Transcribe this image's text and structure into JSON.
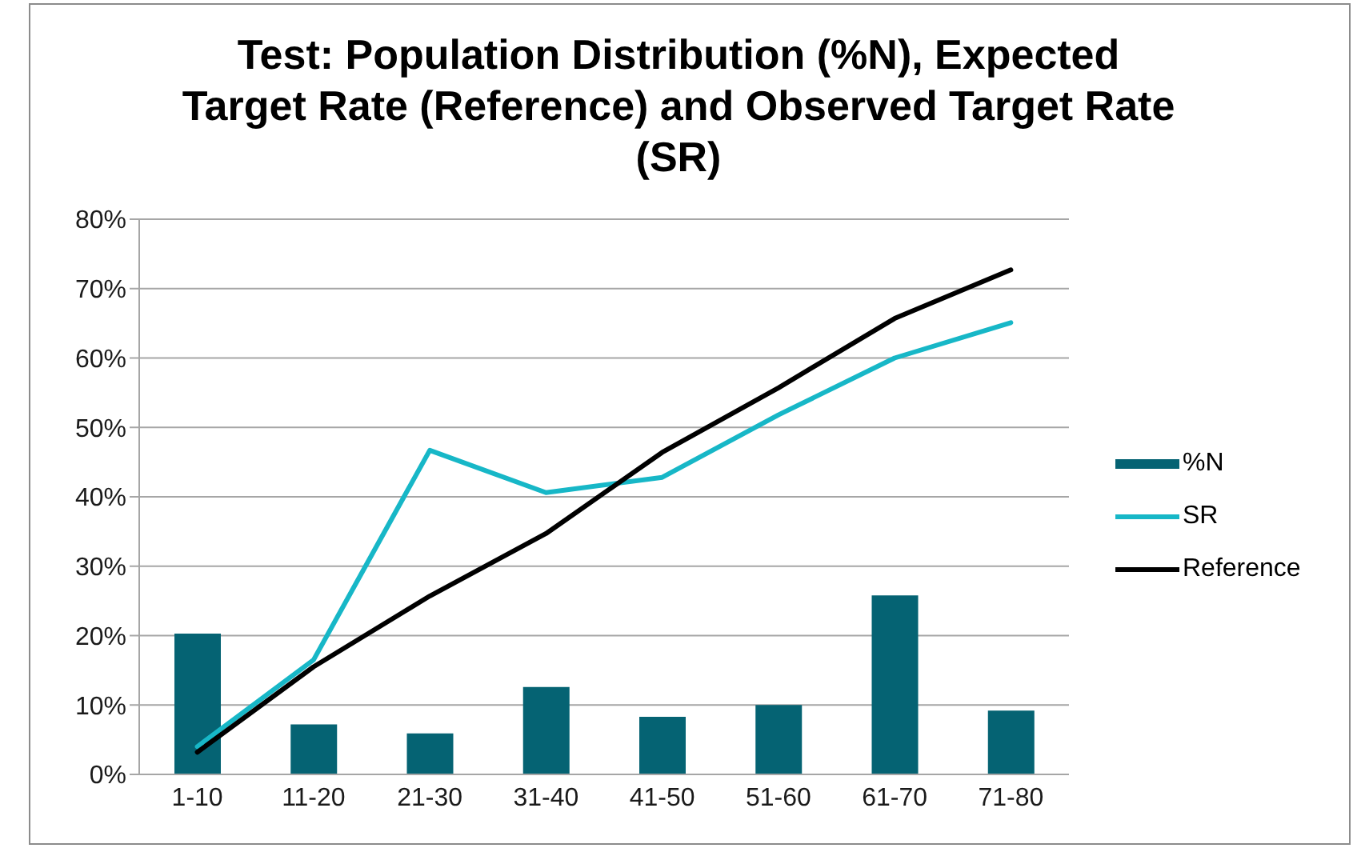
{
  "chart_data": {
    "type": "bar",
    "title": "Test: Population Distribution (%N), Expected Target Rate (Reference) and Observed Target Rate (SR)",
    "categories": [
      "1-10",
      "11-20",
      "21-30",
      "31-40",
      "41-50",
      "51-60",
      "61-70",
      "71-80"
    ],
    "series": [
      {
        "name": "%N",
        "color": "#056373",
        "values": [
          20.3,
          7.2,
          5.9,
          12.6,
          8.3,
          10.0,
          25.8,
          9.2
        ]
      },
      {
        "name": "SR",
        "type": "line",
        "color": "#17b7c7",
        "values": [
          4.0,
          16.5,
          46.7,
          40.6,
          42.8,
          51.8,
          60.0,
          65.1
        ]
      },
      {
        "name": "Reference",
        "type": "line",
        "color": "#000000",
        "values": [
          3.2,
          15.5,
          25.7,
          34.7,
          46.4,
          55.7,
          65.7,
          72.7
        ]
      }
    ],
    "ylim": [
      0,
      80
    ],
    "yticks": [
      {
        "value": 0,
        "label": "0%"
      },
      {
        "value": 10,
        "label": "10%"
      },
      {
        "value": 20,
        "label": "20%"
      },
      {
        "value": 30,
        "label": "30%"
      },
      {
        "value": 40,
        "label": "40%"
      },
      {
        "value": 50,
        "label": "50%"
      },
      {
        "value": 60,
        "label": "60%"
      },
      {
        "value": 70,
        "label": "70%"
      },
      {
        "value": 80,
        "label": "80%"
      }
    ],
    "grid": "y",
    "legend": "right",
    "marker": "none"
  }
}
